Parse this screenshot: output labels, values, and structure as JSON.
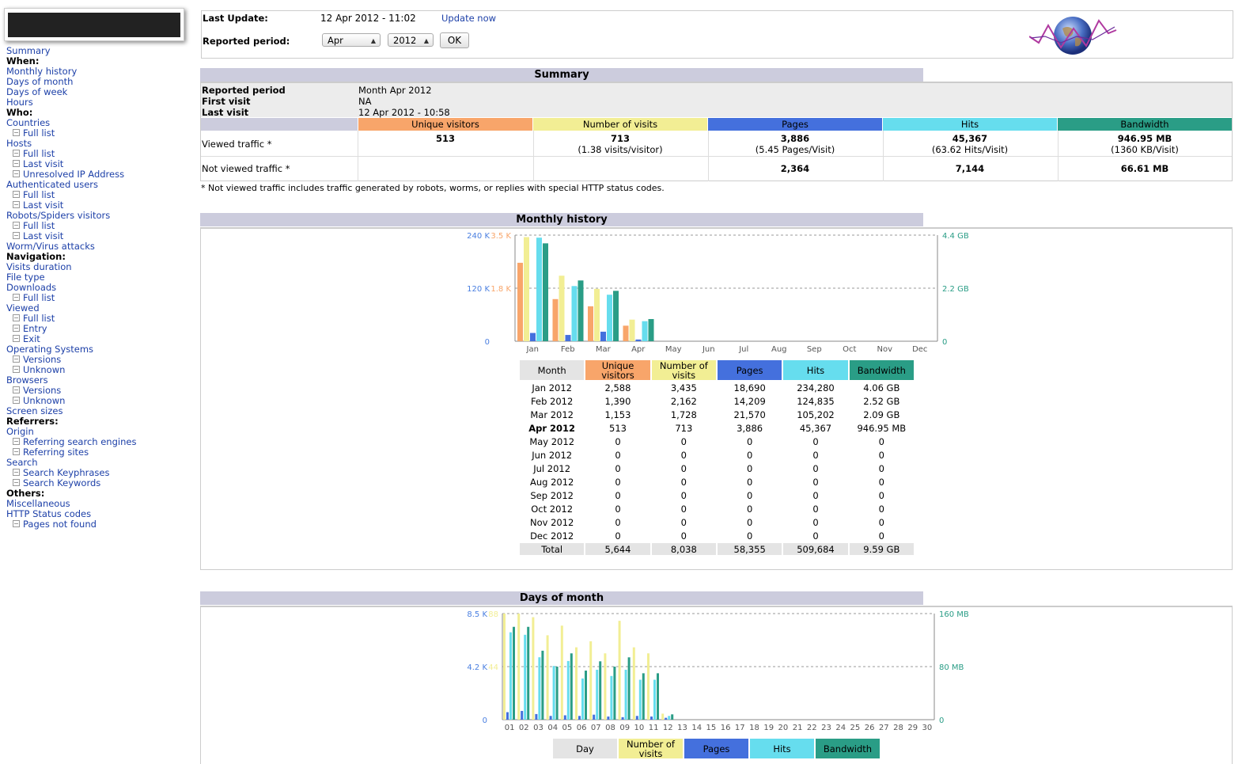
{
  "sidebar": {
    "items": [
      {
        "label": "Summary",
        "type": "link"
      },
      {
        "label": "When:",
        "type": "head"
      },
      {
        "label": "Monthly history",
        "type": "link"
      },
      {
        "label": "Days of month",
        "type": "link"
      },
      {
        "label": "Days of week",
        "type": "link"
      },
      {
        "label": "Hours",
        "type": "link"
      },
      {
        "label": "Who:",
        "type": "head"
      },
      {
        "label": "Countries",
        "type": "link"
      },
      {
        "label": "Full list",
        "type": "sub"
      },
      {
        "label": "Hosts",
        "type": "link"
      },
      {
        "label": "Full list",
        "type": "sub"
      },
      {
        "label": "Last visit",
        "type": "sub"
      },
      {
        "label": "Unresolved IP Address",
        "type": "sub"
      },
      {
        "label": "Authenticated users",
        "type": "link"
      },
      {
        "label": "Full list",
        "type": "sub"
      },
      {
        "label": "Last visit",
        "type": "sub"
      },
      {
        "label": "Robots/Spiders visitors",
        "type": "link"
      },
      {
        "label": "Full list",
        "type": "sub"
      },
      {
        "label": "Last visit",
        "type": "sub"
      },
      {
        "label": "Worm/Virus attacks",
        "type": "link"
      },
      {
        "label": "Navigation:",
        "type": "head"
      },
      {
        "label": "Visits duration",
        "type": "link"
      },
      {
        "label": "File type",
        "type": "link"
      },
      {
        "label": "Downloads",
        "type": "link"
      },
      {
        "label": "Full list",
        "type": "sub"
      },
      {
        "label": "Viewed",
        "type": "link"
      },
      {
        "label": "Full list",
        "type": "sub"
      },
      {
        "label": "Entry",
        "type": "sub"
      },
      {
        "label": "Exit",
        "type": "sub"
      },
      {
        "label": "Operating Systems",
        "type": "link"
      },
      {
        "label": "Versions",
        "type": "sub"
      },
      {
        "label": "Unknown",
        "type": "sub"
      },
      {
        "label": "Browsers",
        "type": "link"
      },
      {
        "label": "Versions",
        "type": "sub"
      },
      {
        "label": "Unknown",
        "type": "sub"
      },
      {
        "label": "Screen sizes",
        "type": "link"
      },
      {
        "label": "Referrers:",
        "type": "head"
      },
      {
        "label": "Origin",
        "type": "link"
      },
      {
        "label": "Referring search engines",
        "type": "sub"
      },
      {
        "label": "Referring sites",
        "type": "sub"
      },
      {
        "label": "Search",
        "type": "link"
      },
      {
        "label": "Search Keyphrases",
        "type": "sub"
      },
      {
        "label": "Search Keywords",
        "type": "sub"
      },
      {
        "label": "Others:",
        "type": "head"
      },
      {
        "label": "Miscellaneous",
        "type": "link"
      },
      {
        "label": "HTTP Status codes",
        "type": "link"
      },
      {
        "label": "Pages not found",
        "type": "sub"
      }
    ]
  },
  "header": {
    "last_update_label": "Last Update:",
    "last_update_value": "12 Apr 2012 - 11:02",
    "update_now": "Update now",
    "reported_period_label": "Reported period:",
    "month_select": "Apr",
    "year_select": "2012",
    "ok": "OK"
  },
  "summary": {
    "title": "Summary",
    "reported_period_label": "Reported period",
    "reported_period_value": "Month Apr 2012",
    "first_visit_label": "First visit",
    "first_visit_value": "NA",
    "last_visit_label": "Last visit",
    "last_visit_value": "12 Apr 2012 - 10:58",
    "columns": [
      "Unique visitors",
      "Number of visits",
      "Pages",
      "Hits",
      "Bandwidth"
    ],
    "viewed_label": "Viewed traffic *",
    "viewed": [
      {
        "main": "513",
        "sub": ""
      },
      {
        "main": "713",
        "sub": "(1.38 visits/visitor)"
      },
      {
        "main": "3,886",
        "sub": "(5.45 Pages/Visit)"
      },
      {
        "main": "45,367",
        "sub": "(63.62 Hits/Visit)"
      },
      {
        "main": "946.95 MB",
        "sub": "(1360 KB/Visit)"
      }
    ],
    "not_viewed_label": "Not viewed traffic *",
    "not_viewed": [
      "",
      "",
      "2,364",
      "7,144",
      "66.61 MB"
    ],
    "footnote": "* Not viewed traffic includes traffic generated by robots, worms, or replies with special HTTP status codes."
  },
  "colors": {
    "unique": "#f8a56a",
    "visits": "#f2ee94",
    "pages": "#4470dd",
    "hits": "#66ddee",
    "bandwidth": "#2a9d86"
  },
  "monthly": {
    "title": "Monthly history",
    "table_headers": [
      "Month",
      "Unique visitors",
      "Number of visits",
      "Pages",
      "Hits",
      "Bandwidth"
    ],
    "rows": [
      [
        "Jan 2012",
        "2,588",
        "3,435",
        "18,690",
        "234,280",
        "4.06 GB"
      ],
      [
        "Feb 2012",
        "1,390",
        "2,162",
        "14,209",
        "124,835",
        "2.52 GB"
      ],
      [
        "Mar 2012",
        "1,153",
        "1,728",
        "21,570",
        "105,202",
        "2.09 GB"
      ],
      [
        "Apr 2012",
        "513",
        "713",
        "3,886",
        "45,367",
        "946.95 MB"
      ],
      [
        "May 2012",
        "0",
        "0",
        "0",
        "0",
        "0"
      ],
      [
        "Jun 2012",
        "0",
        "0",
        "0",
        "0",
        "0"
      ],
      [
        "Jul 2012",
        "0",
        "0",
        "0",
        "0",
        "0"
      ],
      [
        "Aug 2012",
        "0",
        "0",
        "0",
        "0",
        "0"
      ],
      [
        "Sep 2012",
        "0",
        "0",
        "0",
        "0",
        "0"
      ],
      [
        "Oct 2012",
        "0",
        "0",
        "0",
        "0",
        "0"
      ],
      [
        "Nov 2012",
        "0",
        "0",
        "0",
        "0",
        "0"
      ],
      [
        "Dec 2012",
        "0",
        "0",
        "0",
        "0",
        "0"
      ]
    ],
    "total": [
      "Total",
      "5,644",
      "8,038",
      "58,355",
      "509,684",
      "9.59 GB"
    ]
  },
  "chart_data": [
    {
      "type": "bar",
      "title": "Monthly history",
      "categories": [
        "Jan",
        "Feb",
        "Mar",
        "Apr",
        "May",
        "Jun",
        "Jul",
        "Aug",
        "Sep",
        "Oct",
        "Nov",
        "Dec"
      ],
      "axes": {
        "left_outer": {
          "ticks": [
            "0",
            "120 K",
            "240 K"
          ],
          "color": "#4a7fe0"
        },
        "left_inner": {
          "ticks": [
            "1.8 K",
            "3.5 K"
          ],
          "color": "#f8a56a"
        },
        "right": {
          "ticks": [
            "0",
            "2.2 GB",
            "4.4 GB"
          ],
          "color": "#2a9d86"
        }
      },
      "series": [
        {
          "name": "Unique visitors",
          "values": [
            2588,
            1390,
            1153,
            513,
            0,
            0,
            0,
            0,
            0,
            0,
            0,
            0
          ],
          "max": 3500
        },
        {
          "name": "Number of visits",
          "values": [
            3435,
            2162,
            1728,
            713,
            0,
            0,
            0,
            0,
            0,
            0,
            0,
            0
          ],
          "max": 3500
        },
        {
          "name": "Pages",
          "values": [
            18690,
            14209,
            21570,
            3886,
            0,
            0,
            0,
            0,
            0,
            0,
            0,
            0
          ],
          "max": 240000
        },
        {
          "name": "Hits",
          "values": [
            234280,
            124835,
            105202,
            45367,
            0,
            0,
            0,
            0,
            0,
            0,
            0,
            0
          ],
          "max": 240000
        },
        {
          "name": "Bandwidth",
          "values": [
            4.06,
            2.52,
            2.09,
            0.92,
            0,
            0,
            0,
            0,
            0,
            0,
            0,
            0
          ],
          "max": 4.4
        }
      ]
    },
    {
      "type": "bar",
      "title": "Days of month",
      "categories": [
        "01",
        "02",
        "03",
        "04",
        "05",
        "06",
        "07",
        "08",
        "09",
        "10",
        "11",
        "12",
        "13",
        "14",
        "15",
        "16",
        "17",
        "18",
        "19",
        "20",
        "21",
        "22",
        "23",
        "24",
        "25",
        "26",
        "27",
        "28",
        "29",
        "30"
      ],
      "axes": {
        "left_outer": {
          "ticks": [
            "0",
            "4.2 K",
            "8.5 K"
          ],
          "color": "#4a7fe0"
        },
        "left_inner": {
          "ticks": [
            "44",
            "88"
          ],
          "color": "#f2ee94"
        },
        "right": {
          "ticks": [
            "0",
            "80 MB",
            "160 MB"
          ],
          "color": "#2a9d86"
        }
      },
      "series": [
        {
          "name": "Number of visits",
          "values": [
            88,
            88,
            85,
            70,
            78,
            60,
            65,
            55,
            82,
            60,
            55,
            5,
            0,
            0,
            0,
            0,
            0,
            0,
            0,
            0,
            0,
            0,
            0,
            0,
            0,
            0,
            0,
            0,
            0,
            0
          ],
          "max": 88
        },
        {
          "name": "Pages",
          "values": [
            600,
            700,
            450,
            300,
            350,
            300,
            400,
            250,
            200,
            300,
            250,
            150,
            0,
            0,
            0,
            0,
            0,
            0,
            0,
            0,
            0,
            0,
            0,
            0,
            0,
            0,
            0,
            0,
            0,
            0
          ],
          "max": 8500
        },
        {
          "name": "Hits",
          "values": [
            7000,
            6800,
            5000,
            4300,
            4700,
            3300,
            4000,
            3500,
            4000,
            3200,
            3200,
            300,
            0,
            0,
            0,
            0,
            0,
            0,
            0,
            0,
            0,
            0,
            0,
            0,
            0,
            0,
            0,
            0,
            0,
            0
          ],
          "max": 8500
        },
        {
          "name": "Bandwidth",
          "values": [
            140,
            140,
            104,
            80,
            100,
            74,
            88,
            80,
            94,
            70,
            70,
            8,
            0,
            0,
            0,
            0,
            0,
            0,
            0,
            0,
            0,
            0,
            0,
            0,
            0,
            0,
            0,
            0,
            0,
            0
          ],
          "max": 160
        }
      ]
    }
  ],
  "days": {
    "title": "Days of month",
    "table_headers": [
      "Day",
      "Number of visits",
      "Pages",
      "Hits",
      "Bandwidth"
    ]
  }
}
